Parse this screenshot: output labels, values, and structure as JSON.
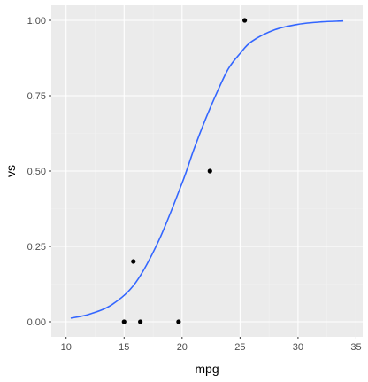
{
  "chart_data": {
    "type": "scatter",
    "title": "",
    "xlabel": "mpg",
    "ylabel": "vs",
    "xlim": [
      10,
      35
    ],
    "ylim": [
      0,
      1
    ],
    "x_ticks": [
      10,
      15,
      20,
      25,
      30,
      35
    ],
    "x_tick_labels": [
      "10",
      "15",
      "20",
      "25",
      "30",
      "35"
    ],
    "y_ticks": [
      0,
      0.25,
      0.5,
      0.75,
      1
    ],
    "y_tick_labels": [
      "0.00",
      "0.25",
      "0.50",
      "0.75",
      "1.00"
    ],
    "grid": true,
    "legend": "none",
    "points": {
      "x": [
        15.0,
        15.8,
        16.4,
        19.7,
        22.4,
        25.4
      ],
      "y": [
        0,
        0.2,
        0,
        0,
        0.5,
        1
      ]
    },
    "fit_curve": {
      "kind": "logistic",
      "x": [
        10.4,
        12,
        14,
        16,
        18,
        20,
        21,
        22,
        23,
        24,
        25,
        26,
        28,
        30,
        32,
        33.9
      ],
      "y": [
        0.012,
        0.025,
        0.058,
        0.13,
        0.27,
        0.46,
        0.57,
        0.67,
        0.76,
        0.84,
        0.89,
        0.93,
        0.969,
        0.987,
        0.995,
        0.998
      ]
    },
    "colors": {
      "panel_background": "#ebebeb",
      "grid_major": "#ffffff",
      "grid_minor": "#f2f2f2",
      "points": "#000000",
      "fit_line": "#3366ff",
      "tick_labels": "#4d4d4d",
      "axis_titles": "#000000"
    }
  }
}
